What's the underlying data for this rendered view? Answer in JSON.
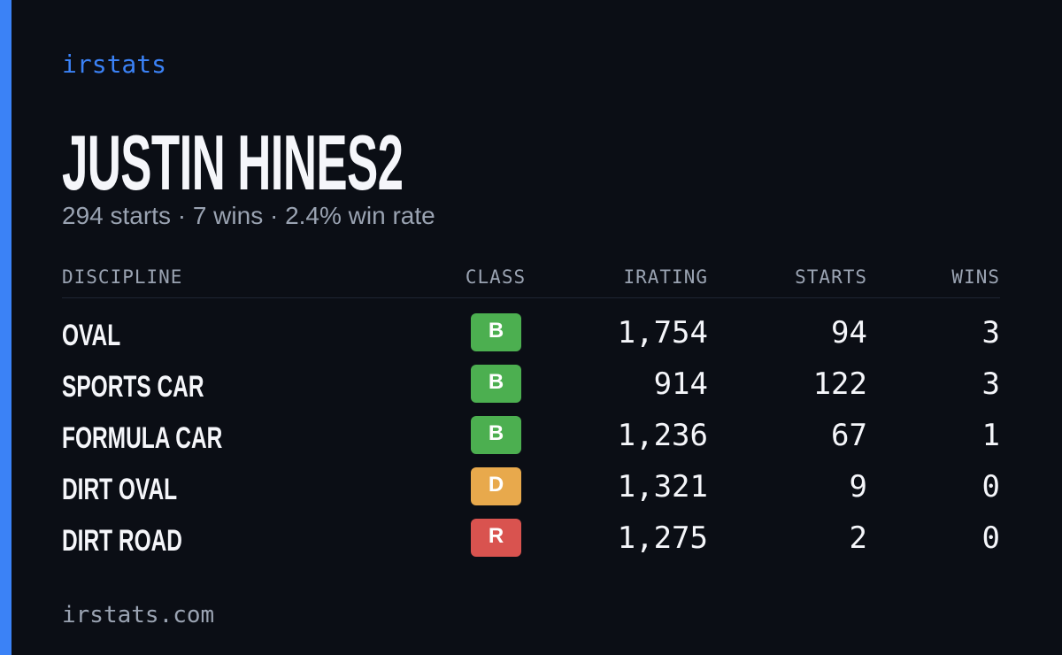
{
  "brand": "irstats",
  "profile": {
    "name": "JUSTIN HINES2",
    "summary": "294 starts · 7 wins · 2.4% win rate"
  },
  "table": {
    "headers": [
      "DISCIPLINE",
      "CLASS",
      "IRATING",
      "STARTS",
      "WINS"
    ],
    "rows": [
      [
        "OVAL",
        "B",
        "1,754",
        "94",
        "3"
      ],
      [
        "SPORTS CAR",
        "B",
        "914",
        "122",
        "3"
      ],
      [
        "FORMULA CAR",
        "B",
        "1,236",
        "67",
        "1"
      ],
      [
        "DIRT OVAL",
        "D",
        "1,321",
        "9",
        "0"
      ],
      [
        "DIRT ROAD",
        "R",
        "1,275",
        "2",
        "0"
      ]
    ]
  },
  "footer": "irstats.com"
}
